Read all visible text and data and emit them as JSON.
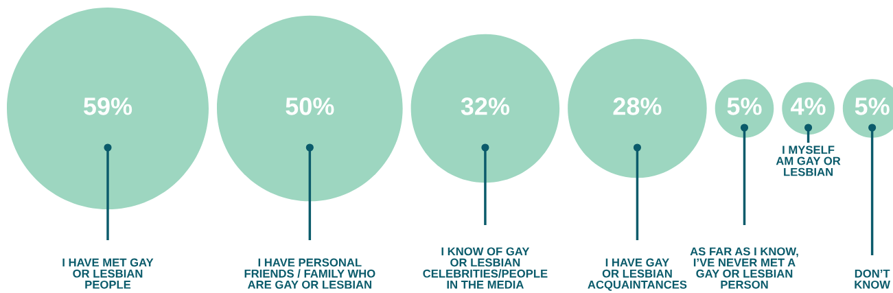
{
  "chart_data": {
    "type": "other",
    "categories": [
      "I HAVE MET GAY\nOR LESBIAN\nPEOPLE",
      "I HAVE PERSONAL\nFRIENDS / FAMILY WHO\nARE GAY OR LESBIAN",
      "I KNOW OF GAY\nOR LESBIAN\nCELEBRITIES/PEOPLE\nIN THE MEDIA",
      "I HAVE GAY\nOR LESBIAN\nACQUAINTANCES",
      "AS FAR AS I KNOW,\nI’VE NEVER MET A\nGAY OR LESBIAN\nPERSON",
      "I MYSELF\nAM GAY OR\nLESBIAN",
      "DON’T\nKNOW"
    ],
    "values": [
      59,
      50,
      32,
      28,
      5,
      4,
      5
    ],
    "value_labels": [
      "59%",
      "50%",
      "32%",
      "28%",
      "5%",
      "4%",
      "5%"
    ],
    "color": "#9dd6c0"
  }
}
